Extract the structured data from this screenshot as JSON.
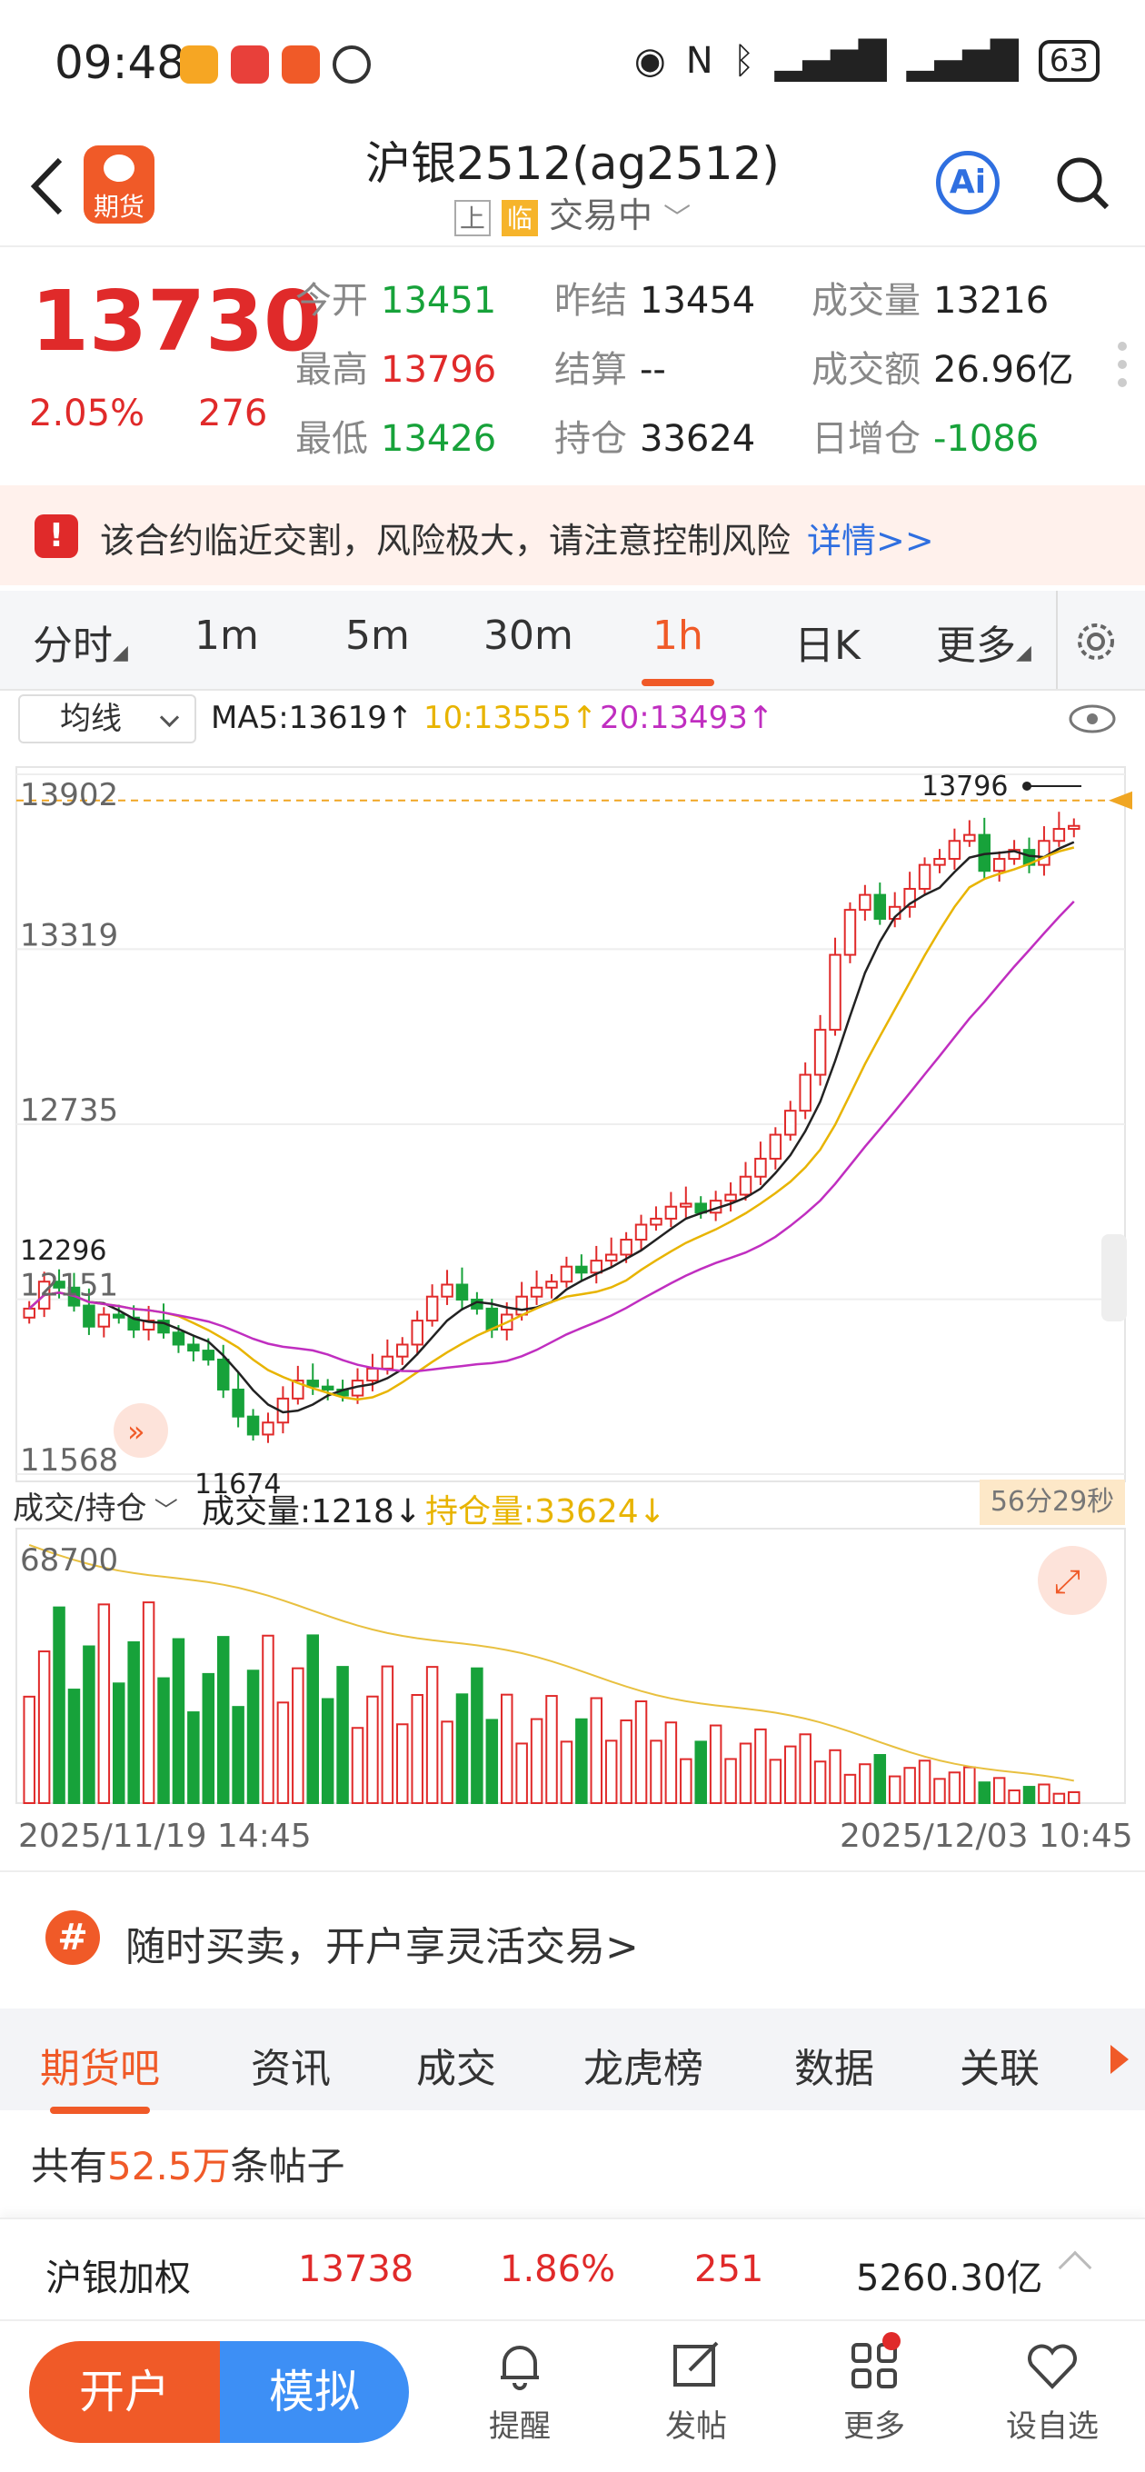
{
  "status": {
    "time": "09:48",
    "battery": "63"
  },
  "header": {
    "logo_text": "期货",
    "title": "沪银2512(ag2512)",
    "exchange_tag": "上",
    "type_tag": "临",
    "trade_status": "交易中",
    "ai_label": "Ai"
  },
  "quote": {
    "price": "13730",
    "change_pct": "2.05%",
    "change": "276",
    "fields": [
      {
        "label": "今开",
        "value": "13451",
        "color": "green"
      },
      {
        "label": "昨结",
        "value": "13454",
        "color": "dark"
      },
      {
        "label": "成交量",
        "value": "13216",
        "color": "dark"
      },
      {
        "label": "最高",
        "value": "13796",
        "color": "red"
      },
      {
        "label": "结算",
        "value": "--",
        "color": "dark"
      },
      {
        "label": "成交额",
        "value": "26.96亿",
        "color": "dark"
      },
      {
        "label": "最低",
        "value": "13426",
        "color": "green"
      },
      {
        "label": "持仓",
        "value": "33624",
        "color": "dark"
      },
      {
        "label": "日增仓",
        "value": "-1086",
        "color": "green"
      }
    ]
  },
  "warning": {
    "text": "该合约临近交割，风险极大，请注意控制风险",
    "link": "详情>>"
  },
  "period_tabs": [
    "分时",
    "1m",
    "5m",
    "30m",
    "1h",
    "日K",
    "更多"
  ],
  "active_period": "1h",
  "ma": {
    "selector": "均线",
    "ma5": "MA5:13619↑",
    "ma10": "10:13555↑",
    "ma20": "20:13493↑"
  },
  "chart_labels": {
    "y_ticks": [
      "13902",
      "13319",
      "12735",
      "12151",
      "11568"
    ],
    "high_label": "13796",
    "low_label": "11674",
    "level_label": "12296",
    "vol_max": "68700"
  },
  "volume": {
    "selector": "成交/持仓",
    "vol": "成交量:1218↓",
    "oi": "持仓量:33624↓",
    "countdown": "56分29秒"
  },
  "dates": {
    "start": "2025/11/19 14:45",
    "end": "2025/12/03 10:45"
  },
  "promo": {
    "text": "随时买卖，开户享灵活交易>"
  },
  "content_tabs": [
    "期货吧",
    "资讯",
    "成交",
    "龙虎榜",
    "数据",
    "关联"
  ],
  "posts": {
    "prefix": "共有",
    "count": "52.5万",
    "suffix": "条帖子"
  },
  "lower_quote": {
    "name": "沪银加权",
    "price": "13738",
    "pct": "1.86%",
    "change": "251",
    "amount": "5260.30亿"
  },
  "bottom": {
    "open": "开户",
    "simulate": "模拟",
    "nav": [
      "提醒",
      "发帖",
      "更多",
      "设自选"
    ]
  },
  "chart_data": {
    "type": "candlestick",
    "ylim": [
      11568,
      13902
    ],
    "close_series_approx": [
      12120,
      12210,
      12190,
      12130,
      12060,
      12100,
      12090,
      12050,
      12080,
      12040,
      12000,
      11980,
      11950,
      11850,
      11760,
      11700,
      11740,
      11820,
      11880,
      11860,
      11850,
      11830,
      11880,
      11920,
      11960,
      12000,
      12080,
      12160,
      12200,
      12150,
      12120,
      12050,
      12100,
      12160,
      12190,
      12210,
      12260,
      12240,
      12280,
      12300,
      12350,
      12400,
      12420,
      12460,
      12470,
      12440,
      12480,
      12500,
      12560,
      12620,
      12700,
      12780,
      12900,
      13050,
      13300,
      13450,
      13500,
      13420,
      13460,
      13520,
      13600,
      13620,
      13680,
      13700,
      13580,
      13620,
      13650,
      13600,
      13680,
      13720,
      13730
    ]
  }
}
